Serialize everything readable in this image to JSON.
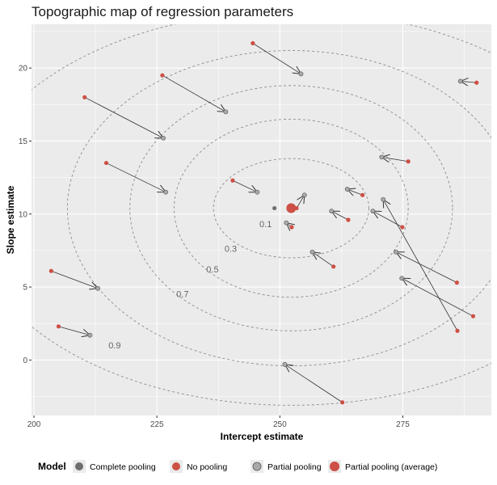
{
  "chart_data": {
    "type": "scatter",
    "title": "Topographic map of regression parameters",
    "xlabel": "Intercept estimate",
    "ylabel": "Slope estimate",
    "xlim": [
      199.5,
      293
    ],
    "ylim": [
      -3.8,
      23
    ],
    "x_ticks": [
      200,
      225,
      250,
      275
    ],
    "y_ticks": [
      0,
      5,
      10,
      15,
      20
    ],
    "grid": true,
    "colors": {
      "panel": "#ebebeb",
      "grid": "#ffffff",
      "no_pooling": "#cd4f45",
      "complete_pooling": "#6e6e6e",
      "partial_pooling": "#a9a9a9",
      "partial_pooling_average": "#cd4f45",
      "arrow": "#333333",
      "contour": "#8c8c8c"
    },
    "legend": {
      "title": "Model",
      "position": "bottom",
      "entries": [
        "Complete pooling",
        "No pooling",
        "Partial pooling",
        "Partial pooling (average)"
      ]
    },
    "contours": {
      "center": [
        252.3,
        10.4
      ],
      "levels": [
        {
          "label": "0.1",
          "rx": 15.8,
          "ry": 3.4,
          "label_at": [
            247.1,
            9.1
          ]
        },
        {
          "label": "0.3",
          "rx": 23.8,
          "ry": 6.1,
          "label_at": [
            240.0,
            7.4
          ]
        },
        {
          "label": "0.5",
          "rx": 32.8,
          "ry": 8.4,
          "label_at": [
            236.3,
            6.0
          ]
        },
        {
          "label": "0.7",
          "rx": 45.5,
          "ry": 10.8,
          "label_at": [
            230.2,
            4.3
          ]
        },
        {
          "label": "0.9",
          "rx": 66.0,
          "ry": 13.5,
          "label_at": [
            216.4,
            0.8
          ]
        }
      ]
    },
    "complete_pooling": {
      "x": 248.9,
      "y": 10.4
    },
    "partial_pooling_average": {
      "x": 252.3,
      "y": 10.4
    },
    "arrows": [
      {
        "from": [
          244.5,
          21.7
        ],
        "to": [
          254.3,
          19.6
        ]
      },
      {
        "from": [
          226.1,
          19.5
        ],
        "to": [
          239.0,
          17.0
        ]
      },
      {
        "from": [
          210.3,
          18.0
        ],
        "to": [
          226.3,
          15.2
        ]
      },
      {
        "from": [
          214.7,
          13.5
        ],
        "to": [
          226.8,
          11.5
        ]
      },
      {
        "from": [
          240.4,
          12.3
        ],
        "to": [
          245.4,
          11.5
        ]
      },
      {
        "from": [
          203.5,
          6.1
        ],
        "to": [
          213.0,
          4.9
        ]
      },
      {
        "from": [
          205.0,
          2.3
        ],
        "to": [
          211.4,
          1.7
        ]
      },
      {
        "from": [
          262.7,
          -2.9
        ],
        "to": [
          251.0,
          -0.3
        ]
      },
      {
        "from": [
          276.1,
          13.6
        ],
        "to": [
          270.7,
          13.9
        ]
      },
      {
        "from": [
          266.8,
          11.3
        ],
        "to": [
          263.7,
          11.7
        ]
      },
      {
        "from": [
          253.4,
          10.4
        ],
        "to": [
          255.0,
          11.3
        ]
      },
      {
        "from": [
          252.4,
          9.1
        ],
        "to": [
          251.3,
          9.4
        ]
      },
      {
        "from": [
          263.9,
          9.6
        ],
        "to": [
          260.5,
          10.2
        ]
      },
      {
        "from": [
          260.9,
          6.4
        ],
        "to": [
          256.6,
          7.4
        ]
      },
      {
        "from": [
          274.9,
          9.1
        ],
        "to": [
          268.9,
          10.2
        ]
      },
      {
        "from": [
          286.0,
          5.3
        ],
        "to": [
          273.6,
          7.4
        ]
      },
      {
        "from": [
          289.3,
          3.0
        ],
        "to": [
          274.8,
          5.6
        ]
      },
      {
        "from": [
          286.1,
          2.0
        ],
        "to": [
          271.0,
          11.0
        ]
      },
      {
        "from": [
          290.0,
          19.0
        ],
        "to": [
          286.7,
          19.1
        ]
      }
    ]
  }
}
